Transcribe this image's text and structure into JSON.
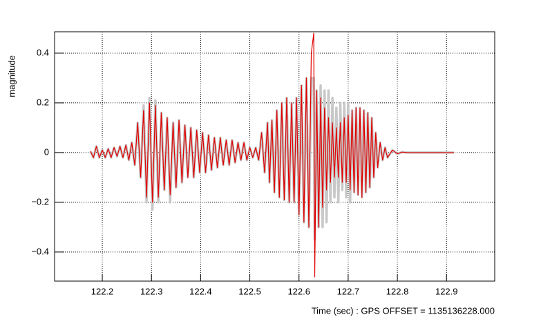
{
  "chart_data": {
    "type": "line",
    "ylabel": "magnitude",
    "xlabel": "Time (sec) : GPS OFFSET = 1135136228.000",
    "xlim": [
      122.103,
      122.998
    ],
    "ylim": [
      -0.517,
      0.486
    ],
    "xticks": [
      122.2,
      122.3,
      122.4,
      122.5,
      122.6,
      122.7,
      122.8,
      122.9
    ],
    "yticks": [
      {
        "value": -0.4,
        "label": "−0.4"
      },
      {
        "value": -0.2,
        "label": "−0.2"
      },
      0,
      0.2,
      0.4
    ],
    "grid": true,
    "x": [
      122.176,
      122.182,
      122.188,
      122.194,
      122.2,
      122.206,
      122.212,
      122.218,
      122.224,
      122.23,
      122.236,
      122.242,
      122.248,
      122.254,
      122.26,
      122.266,
      122.272,
      122.278,
      122.284,
      122.29,
      122.296,
      122.302,
      122.308,
      122.314,
      122.32,
      122.326,
      122.332,
      122.338,
      122.344,
      122.35,
      122.356,
      122.362,
      122.368,
      122.374,
      122.38,
      122.386,
      122.392,
      122.398,
      122.404,
      122.41,
      122.416,
      122.422,
      122.428,
      122.434,
      122.44,
      122.446,
      122.452,
      122.458,
      122.464,
      122.47,
      122.476,
      122.482,
      122.488,
      122.494,
      122.5,
      122.506,
      122.512,
      122.518,
      122.524,
      122.53,
      122.536,
      122.54,
      122.545,
      122.55,
      122.555,
      122.56,
      122.565,
      122.57,
      122.575,
      122.58,
      122.585,
      122.59,
      122.595,
      122.6,
      122.605,
      122.61,
      122.615,
      122.62,
      122.625,
      122.63,
      122.632,
      122.636,
      122.64,
      122.644,
      122.648,
      122.652,
      122.656,
      122.66,
      122.664,
      122.668,
      122.672,
      122.676,
      122.68,
      122.684,
      122.688,
      122.692,
      122.696,
      122.7,
      122.704,
      122.708,
      122.712,
      122.716,
      122.72,
      122.724,
      122.728,
      122.732,
      122.736,
      122.74,
      122.744,
      122.748,
      122.752,
      122.756,
      122.76,
      122.765,
      122.77,
      122.775,
      122.78,
      122.79,
      122.8,
      122.81,
      122.82,
      122.915
    ],
    "series": [
      {
        "color": "#c8c8c8",
        "values": [
          0.005,
          -0.02,
          0.025,
          -0.02,
          0.01,
          -0.02,
          0.015,
          -0.02,
          0.02,
          -0.015,
          0.025,
          -0.02,
          0.03,
          -0.03,
          0.04,
          -0.05,
          0.12,
          -0.1,
          0.19,
          -0.2,
          0.22,
          -0.23,
          0.21,
          -0.2,
          0.16,
          -0.15,
          0.14,
          -0.2,
          0.12,
          -0.14,
          0.13,
          -0.12,
          0.11,
          -0.1,
          0.1,
          -0.1,
          0.09,
          -0.08,
          0.08,
          -0.08,
          0.07,
          -0.07,
          0.06,
          -0.06,
          0.06,
          -0.05,
          0.05,
          -0.05,
          0.05,
          -0.04,
          0.04,
          -0.03,
          0.04,
          -0.03,
          0.02,
          -0.02,
          0.02,
          -0.03,
          0.08,
          -0.08,
          0.12,
          -0.12,
          0.13,
          -0.16,
          0.17,
          -0.18,
          0.2,
          -0.19,
          0.22,
          -0.2,
          0.2,
          -0.2,
          0.22,
          -0.25,
          0.27,
          -0.28,
          0.3,
          -0.3,
          0.3,
          0.3,
          -0.35,
          0.25,
          -0.3,
          0.27,
          -0.3,
          0.25,
          -0.28,
          0.25,
          -0.2,
          0.22,
          -0.18,
          0.18,
          -0.2,
          0.2,
          -0.15,
          0.2,
          -0.18,
          0.2,
          -0.2,
          0.17,
          -0.16,
          0.18,
          -0.17,
          0.18,
          -0.18,
          0.17,
          -0.16,
          0.16,
          -0.14,
          0.14,
          -0.1,
          0.08,
          -0.06,
          0.04,
          -0.03,
          0.02,
          -0.02,
          0.01,
          -0.005,
          0.002,
          0,
          0
        ]
      },
      {
        "color": "#e00000",
        "values": [
          0.005,
          -0.02,
          0.025,
          -0.02,
          0.01,
          -0.02,
          0.015,
          -0.02,
          0.02,
          -0.015,
          0.025,
          -0.02,
          0.03,
          -0.03,
          0.04,
          -0.05,
          0.12,
          -0.1,
          0.17,
          -0.18,
          0.2,
          -0.2,
          0.19,
          -0.18,
          0.16,
          -0.15,
          0.14,
          -0.17,
          0.12,
          -0.14,
          0.13,
          -0.12,
          0.11,
          -0.1,
          0.1,
          -0.1,
          0.09,
          -0.08,
          0.08,
          -0.08,
          0.07,
          -0.07,
          0.06,
          -0.06,
          0.06,
          -0.05,
          0.05,
          -0.05,
          0.05,
          -0.04,
          0.04,
          -0.03,
          0.04,
          -0.03,
          0.02,
          -0.02,
          0.02,
          -0.03,
          0.08,
          -0.08,
          0.12,
          -0.12,
          0.13,
          -0.16,
          0.17,
          -0.18,
          0.2,
          -0.19,
          0.22,
          -0.2,
          0.2,
          -0.2,
          0.22,
          -0.25,
          0.27,
          -0.28,
          0.3,
          -0.3,
          0.4,
          0.48,
          -0.5,
          0.25,
          -0.3,
          0.22,
          -0.22,
          0.18,
          -0.15,
          0.14,
          -0.12,
          0.12,
          -0.1,
          0.1,
          -0.1,
          0.12,
          -0.12,
          0.14,
          -0.12,
          0.15,
          -0.15,
          0.17,
          -0.16,
          0.18,
          -0.17,
          0.18,
          -0.18,
          0.17,
          -0.16,
          0.16,
          -0.14,
          0.14,
          -0.1,
          0.08,
          -0.06,
          0.04,
          -0.03,
          0.02,
          -0.02,
          0.01,
          -0.005,
          0.002,
          0,
          0
        ]
      }
    ]
  }
}
